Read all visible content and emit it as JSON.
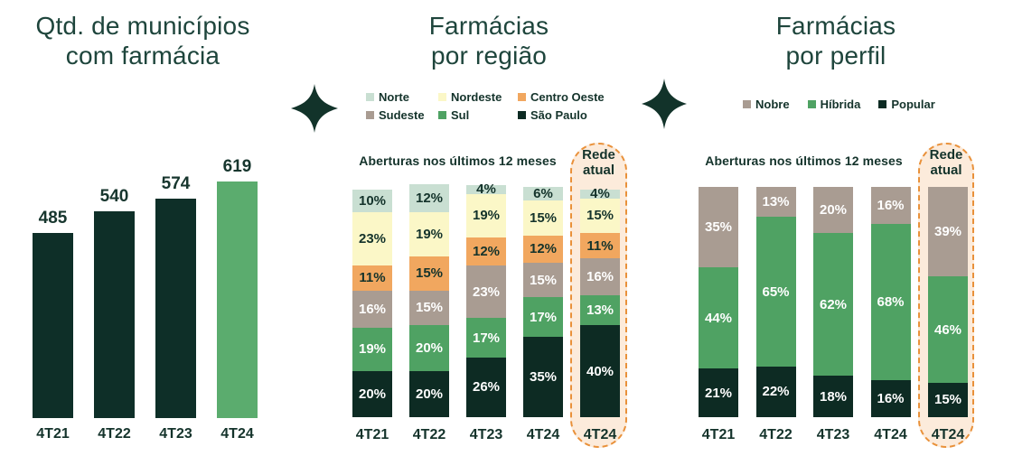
{
  "colors": {
    "title": "#1E453C",
    "label_dark": "#14332B",
    "highlight_fill": "#FCEBDB",
    "highlight_border": "#E9913A",
    "diamond": "#12332A",
    "background": "#ffffff"
  },
  "dividers": [
    {
      "icon": "four-point-star",
      "color": "#12332A"
    },
    {
      "icon": "four-point-star",
      "color": "#12332A"
    }
  ],
  "chart_data": [
    {
      "id": "municipios",
      "type": "bar",
      "title": "Qtd. de municípios com farmácia",
      "title_lines": [
        "Qtd. de municípios",
        "com farmácia"
      ],
      "categories": [
        "4T21",
        "4T22",
        "4T23",
        "4T24"
      ],
      "values": [
        485,
        540,
        574,
        619
      ],
      "bar_colors": [
        "#0E2F28",
        "#0E2F28",
        "#0E2F28",
        "#5BAC6E"
      ],
      "value_labels": true,
      "grid": false,
      "ylim": [
        0,
        650
      ]
    },
    {
      "id": "regiao",
      "type": "stacked-bar",
      "title": "Farmácias por região",
      "title_lines": [
        "Farmácias",
        "por região"
      ],
      "group_heading": "Aberturas nos últimos 12 meses",
      "highlight": {
        "label_lines": [
          "Rede",
          "atual"
        ],
        "applies_to_category": "4T24",
        "fill": "#FCEBDB",
        "border": "#E9913A"
      },
      "categories": [
        "4T21",
        "4T22",
        "4T23",
        "4T24",
        "4T24"
      ],
      "unit": "%",
      "legend_position": "top",
      "grid": false,
      "series": [
        {
          "name": "Norte",
          "color": "#C9DFD2",
          "label_color": "dark",
          "values": [
            10,
            12,
            4,
            6,
            4
          ]
        },
        {
          "name": "Nordeste",
          "color": "#FBF7C7",
          "label_color": "dark",
          "values": [
            23,
            19,
            19,
            15,
            15
          ]
        },
        {
          "name": "Centro Oeste",
          "color": "#F1A75F",
          "label_color": "dark",
          "values": [
            11,
            15,
            12,
            12,
            11
          ]
        },
        {
          "name": "Sudeste",
          "color": "#A99C92",
          "label_color": "white",
          "values": [
            16,
            15,
            23,
            15,
            16
          ]
        },
        {
          "name": "Sul",
          "color": "#4FA263",
          "label_color": "white",
          "values": [
            19,
            20,
            17,
            17,
            13
          ]
        },
        {
          "name": "São Paulo",
          "color": "#0D2B23",
          "label_color": "white",
          "values": [
            20,
            20,
            26,
            35,
            40
          ]
        }
      ]
    },
    {
      "id": "perfil",
      "type": "stacked-bar",
      "title": "Farmácias por perfil",
      "title_lines": [
        "Farmácias",
        "por perfil"
      ],
      "group_heading": "Aberturas nos últimos 12 meses",
      "highlight": {
        "label_lines": [
          "Rede",
          "atual"
        ],
        "applies_to_category": "4T24",
        "fill": "#FCEBDB",
        "border": "#E9913A"
      },
      "categories": [
        "4T21",
        "4T22",
        "4T23",
        "4T24",
        "4T24"
      ],
      "unit": "%",
      "legend_position": "top",
      "grid": false,
      "series": [
        {
          "name": "Nobre",
          "color": "#A99C92",
          "label_color": "white",
          "values": [
            35,
            13,
            20,
            16,
            39
          ]
        },
        {
          "name": "Híbrida",
          "color": "#4FA263",
          "label_color": "white",
          "values": [
            44,
            65,
            62,
            68,
            46
          ]
        },
        {
          "name": "Popular",
          "color": "#0D2B23",
          "label_color": "white",
          "values": [
            21,
            22,
            18,
            16,
            15
          ]
        }
      ]
    }
  ]
}
